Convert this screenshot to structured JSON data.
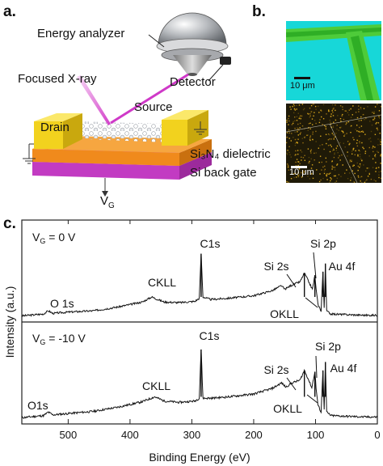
{
  "panel_a": {
    "label": "a.",
    "energy_analyzer": "Energy analyzer",
    "detector": "Detector",
    "focused_xray": "Focused X-ray",
    "source": "Source",
    "drain": "Drain",
    "dielectric": "Si₃N₄ dielectric",
    "back_gate": "Si back gate",
    "vg": "V",
    "vg_sub": "G"
  },
  "panel_b": {
    "label": "b.",
    "scale_top": "10 μm",
    "scale_bottom": "10 μm"
  },
  "panel_c": {
    "label": "c.",
    "chart_data": {
      "type": "line",
      "xlabel": "Binding Energy (eV)",
      "ylabel": "Intensity (a.u.)",
      "xlim": [
        575,
        0
      ],
      "x_ticks": [
        "500",
        "400",
        "300",
        "200",
        "100",
        "0"
      ],
      "series": [
        {
          "name": "VG = 0 V",
          "condition_label": "V",
          "condition_sub": "G",
          "condition_value": " = 0 V",
          "annotations": [
            "O 1s",
            "CKLL",
            "C1s",
            "Si 2s",
            "Si 2p",
            "OKLL",
            "Au 4f"
          ],
          "points": [
            [
              575,
              0.02
            ],
            [
              540,
              0.05
            ],
            [
              532,
              0.1
            ],
            [
              525,
              0.06
            ],
            [
              500,
              0.08
            ],
            [
              460,
              0.1
            ],
            [
              420,
              0.16
            ],
            [
              380,
              0.24
            ],
            [
              365,
              0.32
            ],
            [
              355,
              0.28
            ],
            [
              345,
              0.24
            ],
            [
              320,
              0.23
            ],
            [
              295,
              0.25
            ],
            [
              288,
              0.3
            ],
            [
              285,
              1.0
            ],
            [
              282,
              0.32
            ],
            [
              270,
              0.28
            ],
            [
              240,
              0.3
            ],
            [
              200,
              0.34
            ],
            [
              170,
              0.42
            ],
            [
              155,
              0.5
            ],
            [
              150,
              0.44
            ],
            [
              140,
              0.5
            ],
            [
              125,
              0.56
            ],
            [
              118,
              0.7
            ],
            [
              112,
              0.58
            ],
            [
              105,
              0.44
            ],
            [
              101,
              0.66
            ],
            [
              99,
              0.44
            ],
            [
              96,
              0.2
            ],
            [
              91,
              0.1
            ],
            [
              88,
              0.72
            ],
            [
              86,
              0.15
            ],
            [
              84,
              0.85
            ],
            [
              82,
              0.1
            ],
            [
              75,
              0.05
            ],
            [
              50,
              0.04
            ],
            [
              20,
              0.03
            ],
            [
              0,
              0.03
            ]
          ]
        },
        {
          "name": "VG = -10 V",
          "condition_label": "V",
          "condition_sub": "G",
          "condition_value": " = -10 V",
          "annotations": [
            "O1s",
            "CKLL",
            "C1s",
            "Si 2s",
            "Si 2p",
            "OKLL",
            "Au 4f"
          ],
          "points": [
            [
              575,
              0.02
            ],
            [
              540,
              0.05
            ],
            [
              532,
              0.1
            ],
            [
              525,
              0.06
            ],
            [
              500,
              0.08
            ],
            [
              460,
              0.11
            ],
            [
              420,
              0.17
            ],
            [
              380,
              0.25
            ],
            [
              360,
              0.32
            ],
            [
              355,
              0.3
            ],
            [
              345,
              0.26
            ],
            [
              320,
              0.24
            ],
            [
              295,
              0.26
            ],
            [
              288,
              0.3
            ],
            [
              285,
              1.0
            ],
            [
              282,
              0.3
            ],
            [
              270,
              0.3
            ],
            [
              240,
              0.32
            ],
            [
              200,
              0.36
            ],
            [
              170,
              0.44
            ],
            [
              155,
              0.52
            ],
            [
              148,
              0.46
            ],
            [
              138,
              0.52
            ],
            [
              125,
              0.56
            ],
            [
              118,
              0.7
            ],
            [
              112,
              0.58
            ],
            [
              106,
              0.45
            ],
            [
              101,
              0.68
            ],
            [
              99,
              0.44
            ],
            [
              96,
              0.2
            ],
            [
              91,
              0.1
            ],
            [
              88,
              0.7
            ],
            [
              86,
              0.15
            ],
            [
              84,
              0.82
            ],
            [
              82,
              0.1
            ],
            [
              75,
              0.05
            ],
            [
              50,
              0.04
            ],
            [
              20,
              0.03
            ],
            [
              0,
              0.03
            ]
          ]
        }
      ]
    }
  }
}
